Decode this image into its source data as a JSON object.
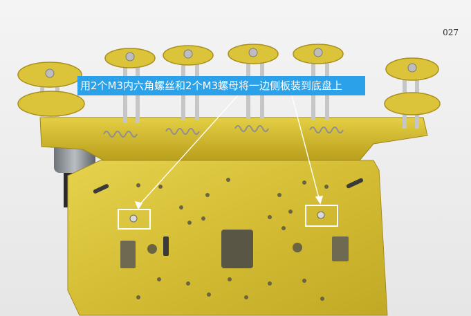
{
  "caption": "用2个M3内六角螺丝和2个M3螺母将一边侧板装到底盘上",
  "page_number": "027",
  "colors": {
    "caption_background": "#2aa1e8",
    "caption_text": "#ffffff",
    "highlight": "#ffffff",
    "chassis_gold": "#d8c23a"
  }
}
